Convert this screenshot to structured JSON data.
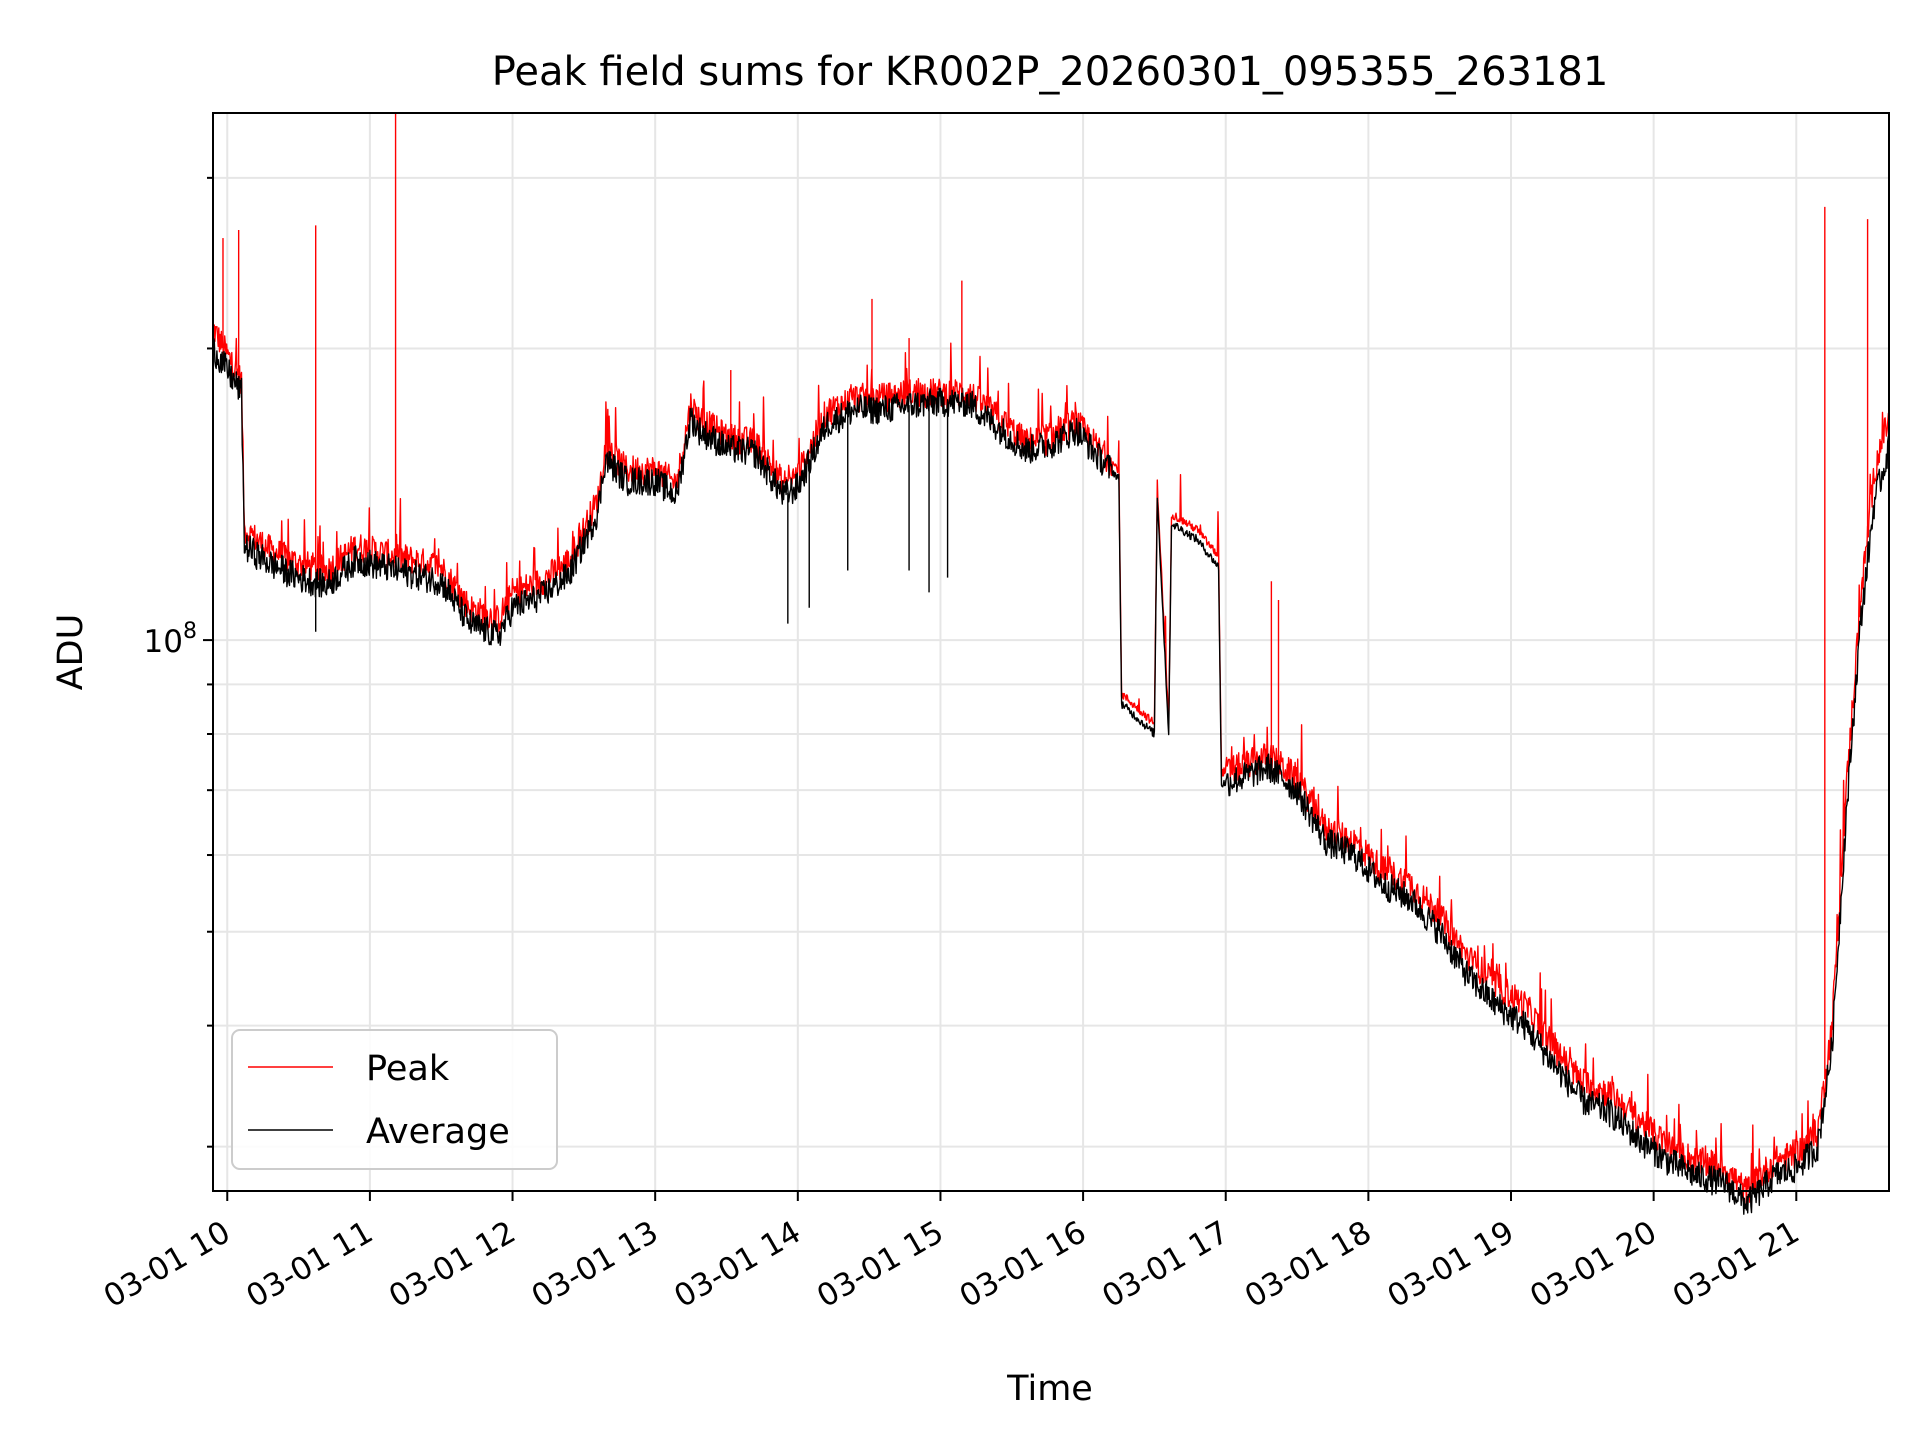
{
  "chart_data": {
    "type": "line",
    "title": "Peak field sums for KR002P_20260301_095355_263181",
    "xlabel": "Time",
    "ylabel": "ADU",
    "x_units": "hours since 03-01 00:00",
    "xlim": [
      9.9,
      21.65
    ],
    "ylim": [
      27000000,
      350000000
    ],
    "yscale": "log",
    "grid": true,
    "x_ticks": [
      {
        "value": 10,
        "label": "03-01 10"
      },
      {
        "value": 11,
        "label": "03-01 11"
      },
      {
        "value": 12,
        "label": "03-01 12"
      },
      {
        "value": 13,
        "label": "03-01 13"
      },
      {
        "value": 14,
        "label": "03-01 14"
      },
      {
        "value": 15,
        "label": "03-01 15"
      },
      {
        "value": 16,
        "label": "03-01 16"
      },
      {
        "value": 17,
        "label": "03-01 17"
      },
      {
        "value": 18,
        "label": "03-01 18"
      },
      {
        "value": 19,
        "label": "03-01 19"
      },
      {
        "value": 20,
        "label": "03-01 20"
      },
      {
        "value": 21,
        "label": "03-01 21"
      }
    ],
    "y_major_ticks": [
      {
        "value": 100000000,
        "base": "10",
        "exp": "8"
      }
    ],
    "y_minor_ticks": [
      30000000,
      40000000,
      50000000,
      60000000,
      70000000,
      80000000,
      90000000,
      200000000,
      300000000
    ],
    "legend": {
      "location": "lower-left",
      "entries": [
        "Peak",
        "Average"
      ]
    },
    "series": [
      {
        "name": "Peak",
        "color": "#ff0000",
        "x": [
          9.9,
          10.1,
          10.12,
          10.3,
          10.5,
          10.7,
          10.9,
          11.1,
          11.3,
          11.5,
          11.7,
          11.9,
          12.0,
          12.2,
          12.4,
          12.6,
          12.65,
          12.8,
          13.0,
          13.15,
          13.25,
          13.3,
          13.5,
          13.7,
          13.9,
          14.0,
          14.2,
          14.4,
          14.6,
          14.8,
          15.0,
          15.2,
          15.4,
          15.6,
          15.8,
          15.95,
          16.1,
          16.25,
          16.27,
          16.5,
          16.52,
          16.6,
          16.62,
          16.8,
          16.95,
          16.97,
          17.1,
          17.3,
          17.5,
          17.7,
          17.9,
          18.1,
          18.3,
          18.5,
          18.7,
          18.9,
          19.1,
          19.3,
          19.5,
          19.7,
          19.9,
          20.1,
          20.3,
          20.5,
          20.65,
          20.75,
          20.85,
          21.0,
          21.15,
          21.25,
          21.35,
          21.45,
          21.55,
          21.6,
          21.65
        ],
        "y": [
          210000000,
          185000000,
          130000000,
          124000000,
          120000000,
          118000000,
          125000000,
          123000000,
          121000000,
          119000000,
          108000000,
          105000000,
          112000000,
          115000000,
          121000000,
          140000000,
          158000000,
          150000000,
          150000000,
          145000000,
          175000000,
          170000000,
          162000000,
          160000000,
          145000000,
          148000000,
          172000000,
          178000000,
          178000000,
          180000000,
          180000000,
          180000000,
          170000000,
          160000000,
          163000000,
          168000000,
          158000000,
          150000000,
          88000000,
          82000000,
          145000000,
          82000000,
          135000000,
          130000000,
          122000000,
          73000000,
          74000000,
          76000000,
          72000000,
          64000000,
          62000000,
          58000000,
          56000000,
          52000000,
          47000000,
          44000000,
          42000000,
          38000000,
          35000000,
          34000000,
          32000000,
          30000000,
          29000000,
          28500000,
          27000000,
          28000000,
          29000000,
          29500000,
          31000000,
          40000000,
          70000000,
          110000000,
          150000000,
          160000000,
          170000000
        ]
      },
      {
        "name": "Average",
        "color": "#000000",
        "x": [
          9.9,
          10.1,
          10.12,
          10.3,
          10.5,
          10.7,
          10.9,
          11.1,
          11.3,
          11.5,
          11.7,
          11.9,
          12.0,
          12.2,
          12.4,
          12.6,
          12.65,
          12.8,
          13.0,
          13.15,
          13.25,
          13.3,
          13.5,
          13.7,
          13.9,
          14.0,
          14.2,
          14.4,
          14.6,
          14.8,
          15.0,
          15.2,
          15.4,
          15.6,
          15.8,
          15.95,
          16.1,
          16.25,
          16.27,
          16.5,
          16.52,
          16.6,
          16.62,
          16.8,
          16.95,
          16.97,
          17.1,
          17.3,
          17.5,
          17.7,
          17.9,
          18.1,
          18.3,
          18.5,
          18.7,
          18.9,
          19.1,
          19.3,
          19.5,
          19.7,
          19.9,
          20.1,
          20.3,
          20.5,
          20.65,
          20.75,
          20.85,
          21.0,
          21.15,
          21.25,
          21.35,
          21.45,
          21.55,
          21.6,
          21.65
        ],
        "y": [
          200000000,
          180000000,
          125000000,
          120000000,
          116000000,
          114000000,
          121000000,
          119000000,
          117000000,
          115000000,
          104000000,
          101000000,
          108000000,
          111000000,
          117000000,
          136000000,
          154000000,
          146000000,
          146000000,
          141000000,
          170000000,
          165000000,
          158000000,
          156000000,
          141000000,
          144000000,
          167000000,
          173000000,
          173000000,
          175000000,
          176000000,
          176000000,
          166000000,
          157000000,
          160000000,
          165000000,
          155000000,
          147000000,
          86000000,
          80000000,
          141000000,
          80000000,
          132000000,
          127000000,
          119000000,
          71000000,
          72000000,
          74000000,
          70000000,
          62000000,
          60000000,
          56000000,
          54000000,
          50000000,
          45000000,
          42000000,
          40000000,
          36500000,
          33500000,
          32500000,
          30500000,
          29000000,
          28000000,
          27500000,
          26200000,
          27000000,
          28000000,
          28500000,
          30000000,
          38000000,
          66000000,
          104000000,
          140000000,
          148000000,
          158000000
        ]
      }
    ],
    "spikes": [
      {
        "series": "Peak",
        "x": 9.97,
        "y": 260000000
      },
      {
        "series": "Peak",
        "x": 10.08,
        "y": 265000000
      },
      {
        "series": "Peak",
        "x": 10.62,
        "y": 268000000
      },
      {
        "series": "Peak",
        "x": 11.18,
        "y": 350000000
      },
      {
        "series": "Peak",
        "x": 13.53,
        "y": 190000000
      },
      {
        "series": "Peak",
        "x": 14.52,
        "y": 225000000
      },
      {
        "series": "Peak",
        "x": 14.78,
        "y": 205000000
      },
      {
        "series": "Peak",
        "x": 15.15,
        "y": 235000000
      },
      {
        "series": "Peak",
        "x": 15.74,
        "y": 155000000
      },
      {
        "series": "Peak",
        "x": 17.32,
        "y": 115000000
      },
      {
        "series": "Peak",
        "x": 17.37,
        "y": 110000000
      },
      {
        "series": "Peak",
        "x": 21.2,
        "y": 280000000
      },
      {
        "series": "Peak",
        "x": 21.5,
        "y": 272000000
      },
      {
        "series": "Average",
        "x": 10.62,
        "y": 102000000
      },
      {
        "series": "Average",
        "x": 13.93,
        "y": 104000000
      },
      {
        "series": "Average",
        "x": 14.08,
        "y": 108000000
      },
      {
        "series": "Average",
        "x": 14.35,
        "y": 118000000
      },
      {
        "series": "Average",
        "x": 14.78,
        "y": 118000000
      },
      {
        "series": "Average",
        "x": 14.92,
        "y": 112000000
      },
      {
        "series": "Average",
        "x": 15.05,
        "y": 116000000
      }
    ]
  }
}
